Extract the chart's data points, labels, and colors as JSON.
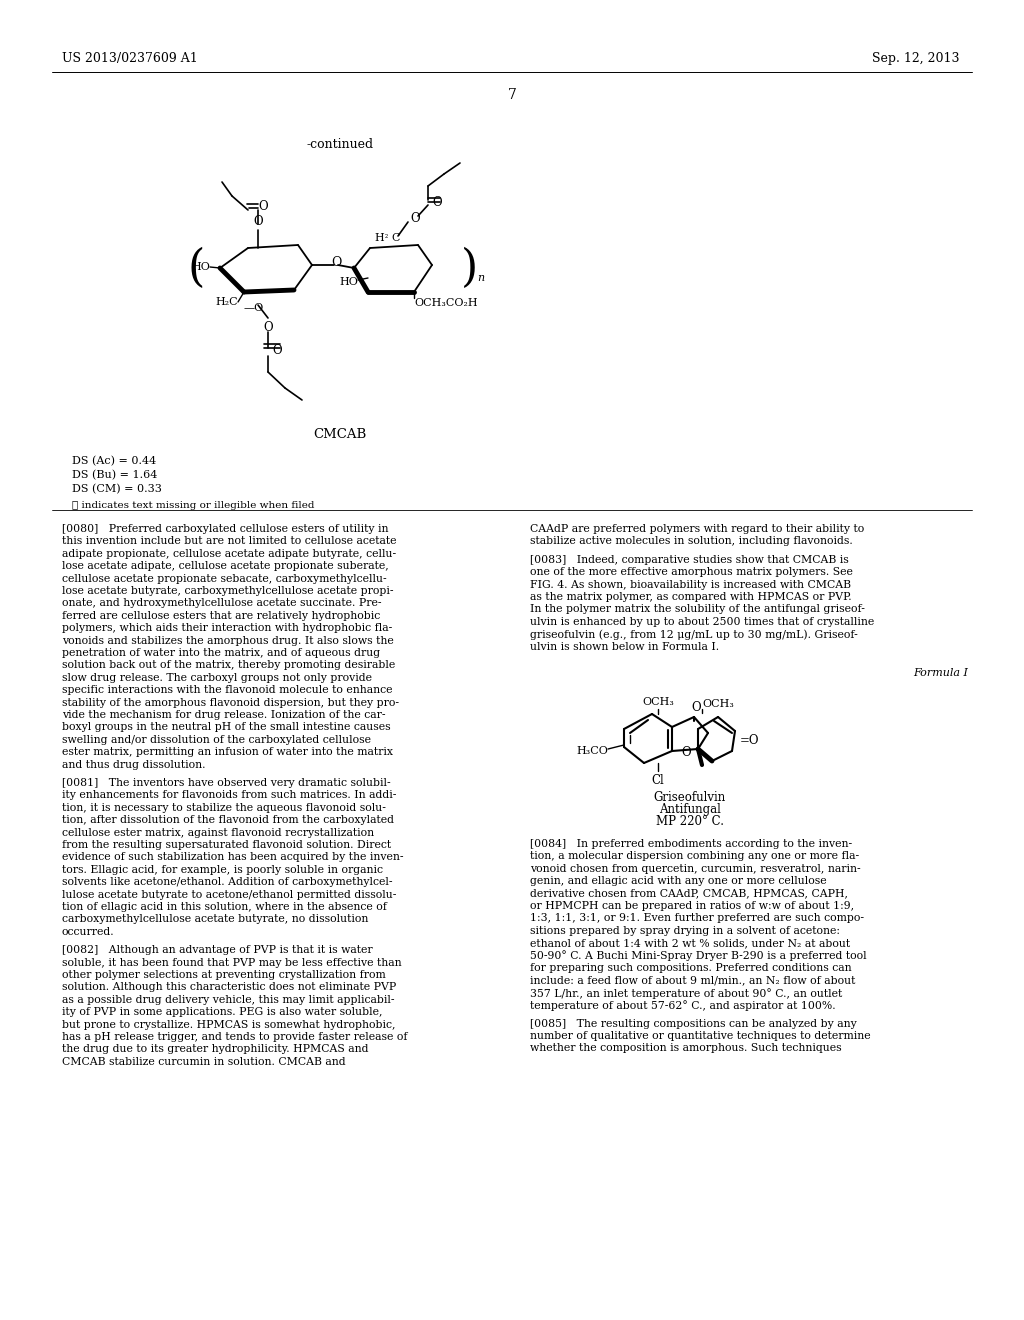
{
  "background_color": "#ffffff",
  "header_left": "US 2013/0237609 A1",
  "header_right": "Sep. 12, 2013",
  "page_number": "7",
  "continued_text": "-continued",
  "cmcab_label": "CMCAB",
  "ds_lines": [
    "DS (Ac) = 0.44",
    "DS (Bu) = 1.64",
    "DS (CM) = 0.33"
  ],
  "illegible_note": "ⓣ indicates text missing or illegible when filed",
  "formula_label": "Formula I",
  "griseofulvin_lines": [
    "Griseofulvin",
    "Antifungal",
    "MP 220° C."
  ],
  "para_0080_left": "[0080]   Preferred carboxylated cellulose esters of utility in\nthis invention include but are not limited to cellulose acetate\nadipate propionate, cellulose acetate adipate butyrate, cellu-\nlose acetate adipate, cellulose acetate propionate suberate,\ncellulose acetate propionate sebacate, carboxymethylcellu-\nlose acetate butyrate, carboxymethylcellulose acetate propi-\nonate, and hydroxymethylcellulose acetate succinate. Pre-\nferred are cellulose esters that are relatively hydrophobic\npolymers, which aids their interaction with hydrophobic fla-\nvonoids and stabilizes the amorphous drug. It also slows the\npenetration of water into the matrix, and of aqueous drug\nsolution back out of the matrix, thereby promoting desirable\nslow drug release. The carboxyl groups not only provide\nspecific interactions with the flavonoid molecule to enhance\nstability of the amorphous flavonoid dispersion, but they pro-\nvide the mechanism for drug release. Ionization of the car-\nboxyl groups in the neutral pH of the small intestine causes\nswelling and/or dissolution of the carboxylated cellulose\nester matrix, permitting an infusion of water into the matrix\nand thus drug dissolution.",
  "para_0081_left": "[0081]   The inventors have observed very dramatic solubil-\nity enhancements for flavonoids from such matrices. In addi-\ntion, it is necessary to stabilize the aqueous flavonoid solu-\ntion, after dissolution of the flavonoid from the carboxylated\ncellulose ester matrix, against flavonoid recrystallization\nfrom the resulting supersaturated flavonoid solution. Direct\nevidence of such stabilization has been acquired by the inven-\ntors. Ellagic acid, for example, is poorly soluble in organic\nsolvents like acetone/ethanol. Addition of carboxymethylcel-\nlulose acetate butyrate to acetone/ethanol permitted dissolu-\ntion of ellagic acid in this solution, where in the absence of\ncarboxymethylcellulose acetate butyrate, no dissolution\noccurred.",
  "para_0082_left": "[0082]   Although an advantage of PVP is that it is water\nsoluble, it has been found that PVP may be less effective than\nother polymer selections at preventing crystallization from\nsolution. Although this characteristic does not eliminate PVP\nas a possible drug delivery vehicle, this may limit applicabil-\nity of PVP in some applications. PEG is also water soluble,\nbut prone to crystallize. HPMCAS is somewhat hydrophobic,\nhas a pH release trigger, and tends to provide faster release of\nthe drug due to its greater hydrophilicity. HPMCAS and\nCMCAB stabilize curcumin in solution. CMCAB and",
  "para_0083_right_prefix": "CAAdP are preferred polymers with regard to their ability to\nstabilize active molecules in solution, including flavonoids.",
  "para_0083_right": "[0083]   Indeed, comparative studies show that CMCAB is\none of the more effective amorphous matrix polymers. See\nFIG. 4. As shown, bioavailability is increased with CMCAB\nas the matrix polymer, as compared with HPMCAS or PVP.\nIn the polymer matrix the solubility of the antifungal griseof-\nulvin is enhanced by up to about 2500 times that of crystalline\ngriseofulvin (e.g., from 12 μg/mL up to 30 mg/mL). Griseof-\nulvin is shown below in Formula I.",
  "para_0084_right": "[0084]   In preferred embodiments according to the inven-\ntion, a molecular dispersion combining any one or more fla-\nvonoid chosen from quercetin, curcumin, resveratrol, narin-\ngenin, and ellagic acid with any one or more cellulose\nderivative chosen from CAAdP, CMCAB, HPMCAS, CAPH,\nor HPMCPH can be prepared in ratios of w:w of about 1:9,\n1:3, 1:1, 3:1, or 9:1. Even further preferred are such compo-\nsitions prepared by spray drying in a solvent of acetone:\nethanol of about 1:4 with 2 wt % solids, under N₂ at about\n50-90° C. A Buchi Mini-Spray Dryer B-290 is a preferred tool\nfor preparing such compositions. Preferred conditions can\ninclude: a feed flow of about 9 ml/min., an N₂ flow of about\n357 L/hr., an inlet temperature of about 90° C., an outlet\ntemperature of about 57-62° C., and aspirator at 100%.",
  "para_0085_right": "[0085]   The resulting compositions can be analyzed by any\nnumber of qualitative or quantitative techniques to determine\nwhether the composition is amorphous. Such techniques"
}
